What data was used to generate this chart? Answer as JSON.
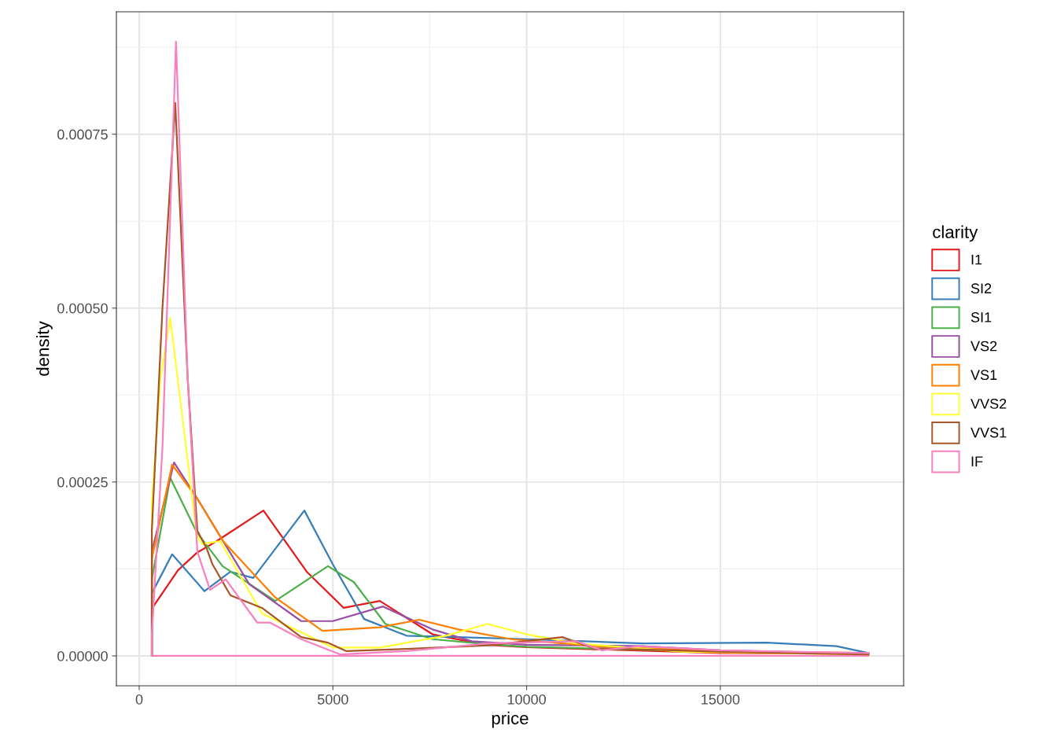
{
  "chart_data": {
    "type": "line",
    "ref_lines": [
      {
        "axis": "y",
        "value": 0,
        "label": null,
        "color": "#f781bf"
      }
    ],
    "xlabel": "price",
    "ylabel": "density",
    "legend_title": "clarity",
    "legend": "right",
    "grid": true,
    "xlim": [
      -589,
      19732
    ],
    "ylim": [
      -4.3e-05,
      0.000926
    ],
    "xticks": [
      0,
      5000,
      10000,
      15000
    ],
    "yticks": [
      {
        "value": 0,
        "label": "0.00000"
      },
      {
        "value": 0.00025,
        "label": "0.00025"
      },
      {
        "value": 0.0005,
        "label": "0.00050"
      },
      {
        "value": 0.00075,
        "label": "0.00075"
      }
    ],
    "series": [
      {
        "name": "I1",
        "color": "#e41a1c",
        "x": [
          326,
          326,
          1000,
          1482,
          2000,
          3207,
          4324,
          5278,
          6212,
          7572,
          8932,
          10000,
          15000,
          18823
        ],
        "values": [
          0,
          6.8e-05,
          0.000123,
          0.000148,
          0.000165,
          0.000209,
          0.000121,
          6.9e-05,
          7.9e-05,
          3.1e-05,
          1.6e-05,
          1.25e-05,
          4e-06,
          3e-06
        ]
      },
      {
        "name": "SI2",
        "color": "#377eb8",
        "x": [
          326,
          326,
          850,
          1685,
          2355,
          2944,
          4263,
          4994,
          5806,
          6902,
          8242,
          10000,
          13000,
          16200,
          18000,
          18823
        ],
        "values": [
          0,
          9e-05,
          0.000146,
          9.3e-05,
          0.000121,
          0.000112,
          0.000209,
          0.000132,
          5.3e-05,
          2.9e-05,
          2.7e-05,
          2.4e-05,
          1.8e-05,
          1.9e-05,
          1.4e-05,
          4e-06
        ]
      },
      {
        "name": "SI1",
        "color": "#4daf4a",
        "x": [
          326,
          326,
          800,
          1482,
          2152,
          3512,
          4872,
          5542,
          6354,
          7572,
          8932,
          10000,
          15000,
          18823
        ],
        "values": [
          0,
          0.00011,
          0.000256,
          0.000178,
          0.000129,
          7.9e-05,
          0.000129,
          0.000106,
          4.6e-05,
          2.4e-05,
          1.7e-05,
          1.3e-05,
          6e-06,
          3e-06
        ]
      },
      {
        "name": "VS2",
        "color": "#984ea3",
        "x": [
          326,
          326,
          900,
          1500,
          2842,
          4182,
          4994,
          6293,
          7572,
          8587,
          10000,
          13000,
          15000,
          18823
        ],
        "values": [
          0,
          0.00015,
          0.000278,
          0.000226,
          0.000103,
          5e-05,
          5e-05,
          7.1e-05,
          3.8e-05,
          2.1e-05,
          1.6e-05,
          1.4e-05,
          8e-06,
          3e-06
        ]
      },
      {
        "name": "VS1",
        "color": "#ff7f00",
        "x": [
          326,
          326,
          850,
          1500,
          2152,
          3512,
          4730,
          6212,
          7227,
          8242,
          9602,
          12000,
          15000,
          18823
        ],
        "values": [
          0,
          0.00014,
          0.000275,
          0.000226,
          0.000166,
          8.4e-05,
          3.6e-05,
          4.1e-05,
          5.2e-05,
          3.8e-05,
          2.4e-05,
          1.3e-05,
          7e-06,
          4e-06
        ]
      },
      {
        "name": "VVS2",
        "color": "#ffff33",
        "x": [
          326,
          326,
          550,
          800,
          1100,
          1482,
          1624,
          2091,
          3167,
          4994,
          6212,
          7917,
          8993,
          10008,
          11287,
          14000,
          18823
        ],
        "values": [
          0,
          0.00022,
          0.0004,
          0.000486,
          0.00035,
          0.000174,
          0.000161,
          0.000165,
          6.1e-05,
          1.2e-05,
          1.2e-05,
          2.9e-05,
          4.6e-05,
          3.1e-05,
          1.8e-05,
          6e-06,
          2e-06
        ]
      },
      {
        "name": "VVS1",
        "color": "#a65628",
        "x": [
          326,
          326,
          600,
          930,
          1250,
          1500,
          1746,
          1888,
          2355,
          3167,
          4182,
          4872,
          5339,
          6902,
          9000,
          10921,
          11734,
          15000,
          18823
        ],
        "values": [
          0,
          0.00018,
          0.0005,
          0.000795,
          0.0004,
          0.00018,
          0.000154,
          0.000132,
          8.7e-05,
          6.9e-05,
          2.7e-05,
          1.9e-05,
          7e-06,
          1e-05,
          1.5e-05,
          2.7e-05,
          1.1e-05,
          6e-06,
          2e-06
        ]
      },
      {
        "name": "IF",
        "color": "#f781bf",
        "x": [
          326,
          326,
          600,
          950,
          1250,
          1500,
          1827,
          2233,
          3045,
          3370,
          4182,
          5197,
          6902,
          9000,
          11287,
          11937,
          12911,
          15000,
          18823
        ],
        "values": [
          0,
          3e-05,
          0.0003,
          0.000883,
          0.0004,
          0.00015,
          9.5e-05,
          0.00011,
          4.8e-05,
          4.8e-05,
          2.4e-05,
          2e-06,
          7e-06,
          1.8e-05,
          2.1e-05,
          8e-06,
          1.4e-05,
          8e-06,
          4e-06
        ]
      }
    ]
  }
}
